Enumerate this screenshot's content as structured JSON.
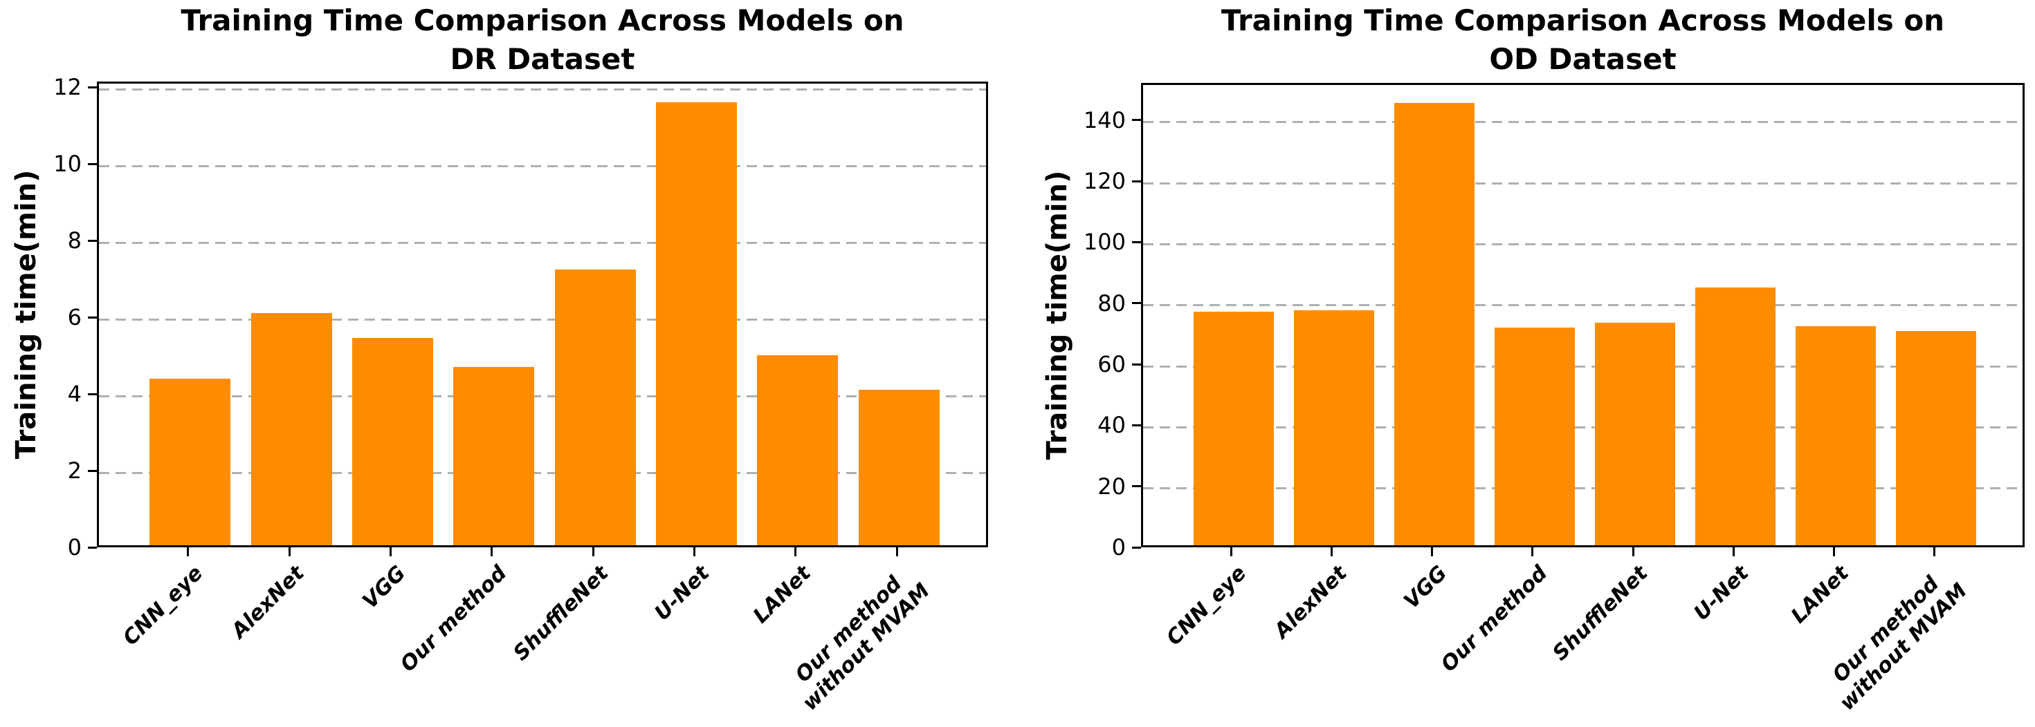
{
  "chart_data": [
    {
      "type": "bar",
      "title": "Training Time Comparison Across Models on DR Dataset",
      "title_line1": "Training Time Comparison Across Models on",
      "title_line2": "DR Dataset",
      "xlabel": "",
      "ylabel": "Training time(min)",
      "categories": [
        "CNN_eye",
        "AlexNet",
        "VGG",
        "Our method",
        "ShuffleNet",
        "U-Net",
        "LANet",
        "Our method\nwithout MVAM"
      ],
      "values": [
        4.35,
        6.05,
        5.4,
        4.65,
        7.2,
        11.55,
        4.95,
        4.05
      ],
      "yticks": [
        0,
        2,
        4,
        6,
        8,
        10,
        12
      ],
      "ylim": [
        0,
        12.15
      ],
      "grid": "horizontal-dashed",
      "legend": "none"
    },
    {
      "type": "bar",
      "title": "Training Time Comparison Across Models on OD Dataset",
      "title_line1": "Training Time Comparison Across Models on",
      "title_line2": "OD Dataset",
      "xlabel": "",
      "ylabel": "Training time(min)",
      "categories": [
        "CNN_eye",
        "AlexNet",
        "VGG",
        "Our method",
        "ShuffleNet",
        "U-Net",
        "LANet",
        "Our method\nwithout MVAM"
      ],
      "values": [
        76.5,
        77,
        145,
        71.3,
        72.9,
        84.4,
        71.7,
        70.2
      ],
      "yticks": [
        0,
        20,
        40,
        60,
        80,
        100,
        120,
        140
      ],
      "ylim": [
        0,
        152.2
      ],
      "grid": "horizontal-dashed",
      "legend": "none"
    }
  ],
  "colors": {
    "bar": "#ff8c00",
    "grid": "#b0b0b0",
    "axis": "#000000",
    "text": "#000000",
    "background": "#ffffff"
  }
}
